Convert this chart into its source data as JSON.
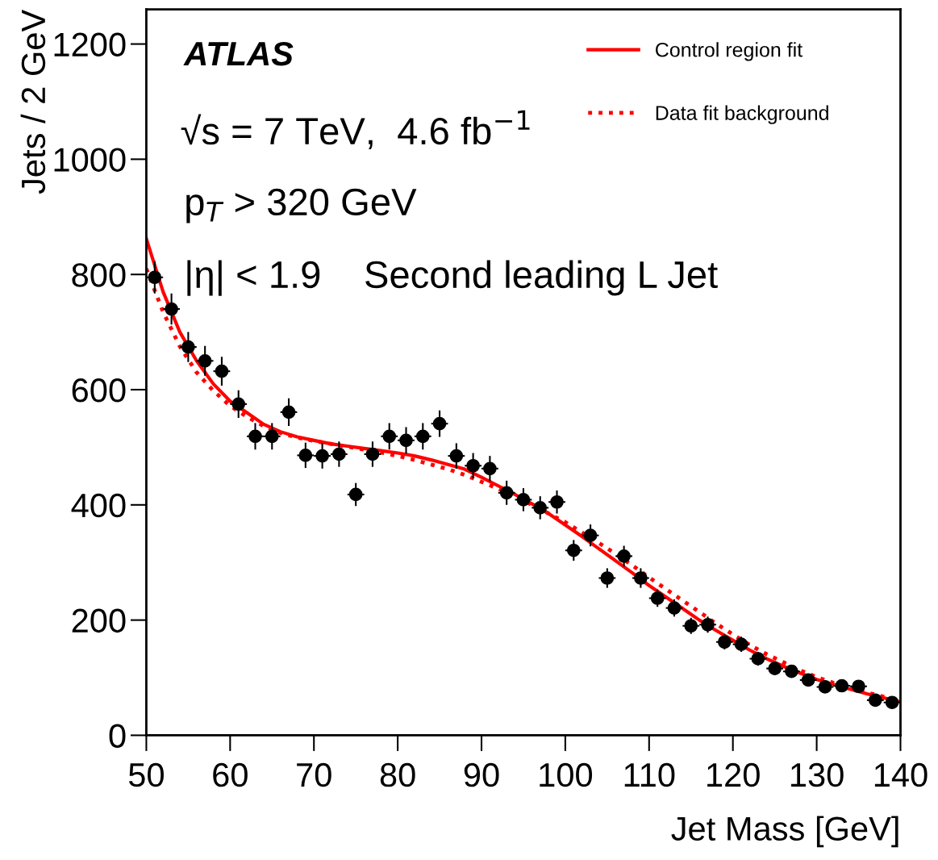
{
  "chart_data": {
    "type": "scatter",
    "xlabel": "Jet Mass [GeV]",
    "ylabel": "Jets / 2 GeV",
    "xlim": [
      50,
      140
    ],
    "ylim": [
      0,
      1260
    ],
    "xticks": [
      50,
      60,
      70,
      80,
      90,
      100,
      110,
      120,
      130,
      140
    ],
    "yticks": [
      0,
      200,
      400,
      600,
      800,
      1000,
      1200
    ],
    "grid": false,
    "legend": "top right",
    "annotations": [
      "ATLAS",
      "√s = 7 TeV,  4.6 fb$^{−1}$",
      "p$_{T}$ > 320 GeV",
      "|η| < 1.9    Second leading L Jet"
    ],
    "series": [
      {
        "color": "#000000",
        "marker": "circle",
        "x": [
          51,
          53,
          55,
          57,
          59,
          61,
          63,
          65,
          67,
          69,
          71,
          73,
          75,
          77,
          79,
          81,
          83,
          85,
          87,
          89,
          91,
          93,
          95,
          97,
          99,
          101,
          103,
          105,
          107,
          109,
          111,
          113,
          115,
          117,
          119,
          121,
          123,
          125,
          127,
          129,
          131,
          133,
          135,
          137,
          139
        ],
        "values": [
          795,
          740,
          674,
          650,
          632,
          575,
          519,
          519,
          561,
          486,
          485,
          488,
          418,
          488,
          519,
          512,
          519,
          541,
          485,
          468,
          463,
          421,
          409,
          395,
          405,
          321,
          347,
          273,
          311,
          273,
          238,
          221,
          190,
          192,
          162,
          158,
          133,
          116,
          111,
          96,
          84,
          86,
          85,
          61,
          57
        ],
        "xerrors": [
          1,
          1,
          1,
          1,
          1,
          1,
          1,
          1,
          1,
          1,
          1,
          1,
          1,
          1,
          1,
          1,
          1,
          1,
          1,
          1,
          1,
          1,
          1,
          1,
          1,
          1,
          1,
          1,
          1,
          1,
          1,
          1,
          1,
          1,
          1,
          1,
          1,
          1,
          1,
          1,
          1,
          1,
          1,
          1,
          1
        ],
        "errors": [
          28,
          27,
          26,
          26,
          25,
          24,
          23,
          23,
          24,
          22,
          22,
          22,
          20,
          22,
          23,
          23,
          23,
          23,
          22,
          22,
          22,
          21,
          20,
          20,
          20,
          18,
          19,
          17,
          18,
          17,
          15,
          15,
          14,
          14,
          13,
          13,
          12,
          11,
          11,
          10,
          9,
          9,
          9,
          8,
          8
        ]
      },
      {
        "type": "line",
        "name": "Control region fit",
        "color": "#ff0000",
        "line_style": "solid",
        "x": [
          50,
          52,
          54,
          56,
          58,
          60,
          62,
          64,
          66,
          68,
          70,
          72,
          74,
          76,
          78,
          80,
          82,
          84,
          86,
          88,
          90,
          92,
          94,
          96,
          98,
          100,
          102,
          104,
          106,
          108,
          110,
          112,
          114,
          116,
          118,
          120,
          122,
          124,
          126,
          128,
          130,
          132,
          134,
          136,
          138,
          140
        ],
        "values": [
          862,
          770,
          700,
          650,
          610,
          580,
          560,
          540,
          527,
          518,
          512,
          506,
          502,
          498,
          494,
          490,
          485,
          478,
          470,
          462,
          448,
          433,
          418,
          402,
          385,
          365,
          345,
          324,
          303,
          282,
          260,
          240,
          220,
          200,
          182,
          165,
          148,
          133,
          120,
          108,
          97,
          88,
          80,
          72,
          65,
          58
        ]
      },
      {
        "type": "line",
        "name": "Data fit background",
        "color": "#ff0000",
        "line_style": "dotted",
        "x": [
          50,
          52,
          54,
          56,
          58,
          60,
          62,
          64,
          66,
          68,
          70,
          72,
          74,
          76,
          78,
          80,
          82,
          84,
          86,
          88,
          90,
          92,
          94,
          96,
          98,
          100,
          102,
          104,
          106,
          108,
          110,
          112,
          114,
          116,
          118,
          120,
          122,
          124,
          126,
          128,
          130,
          132,
          134,
          136,
          138,
          140
        ],
        "values": [
          810,
          735,
          675,
          630,
          598,
          572,
          553,
          537,
          525,
          517,
          511,
          506,
          501,
          496,
          491,
          485,
          478,
          470,
          462,
          452,
          440,
          428,
          414,
          400,
          385,
          370,
          352,
          334,
          315,
          295,
          274,
          254,
          234,
          214,
          194,
          175,
          157,
          141,
          127,
          113,
          101,
          91,
          82,
          74,
          67,
          60
        ]
      }
    ]
  }
}
